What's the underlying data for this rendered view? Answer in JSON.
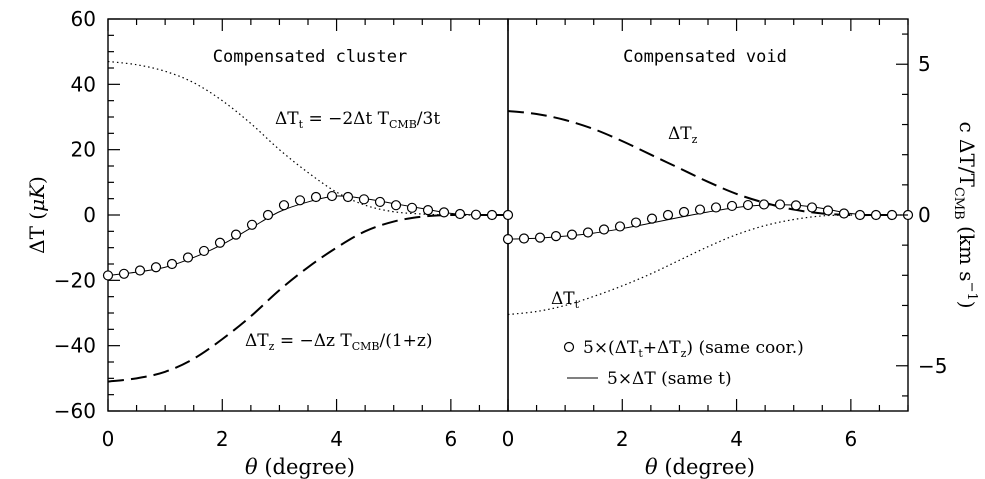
{
  "chart_data": [
    {
      "type": "line",
      "panel": "left",
      "title": "Compensated cluster",
      "xlabel": "θ (degree)",
      "ylabel": "ΔT (μK)",
      "xlim": [
        0,
        7
      ],
      "ylim": [
        -60,
        60
      ],
      "xticks": [
        "0",
        "2",
        "4",
        "6"
      ],
      "yticks": [
        "−60",
        "−40",
        "−20",
        "0",
        "20",
        "40",
        "60"
      ],
      "series": [
        {
          "name": "ΔTt = −2Δt TCMB/3t",
          "style": "dotted",
          "x": [
            0,
            0.5,
            1,
            1.5,
            2,
            2.5,
            3,
            3.5,
            4,
            4.5,
            5,
            5.5,
            6,
            6.5,
            7
          ],
          "y": [
            47,
            46,
            44,
            40.5,
            35,
            28,
            20,
            13,
            7,
            3,
            1,
            0.3,
            0,
            0,
            0
          ]
        },
        {
          "name": "ΔTz = −Δz TCMB/(1+z)",
          "style": "dashed",
          "x": [
            0,
            0.5,
            1,
            1.5,
            2,
            2.5,
            3,
            3.5,
            4,
            4.5,
            5,
            5.5,
            6,
            6.5,
            7
          ],
          "y": [
            -51,
            -50,
            -48,
            -44,
            -38,
            -31,
            -23,
            -16,
            -10,
            -5,
            -2,
            -0.5,
            0,
            0,
            0
          ]
        },
        {
          "name": "5×(ΔTt+ΔTz) (same coor.)",
          "style": "circles",
          "x": [
            0,
            0.28,
            0.56,
            0.84,
            1.12,
            1.4,
            1.68,
            1.96,
            2.24,
            2.52,
            2.8,
            3.08,
            3.36,
            3.64,
            3.92,
            4.2,
            4.48,
            4.76,
            5.04,
            5.32,
            5.6,
            5.88,
            6.16,
            6.44,
            6.72,
            7
          ],
          "y": [
            -18.5,
            -18,
            -17,
            -16,
            -15,
            -13,
            -11,
            -8.5,
            -6,
            -3,
            0,
            3,
            4.5,
            5.5,
            5.8,
            5.5,
            4.8,
            4,
            3,
            2.2,
            1.5,
            0.8,
            0.3,
            0.1,
            0,
            0
          ]
        },
        {
          "name": "5×ΔT (same t)",
          "style": "solid",
          "x": [
            0,
            0.5,
            1,
            1.5,
            2,
            2.5,
            3,
            3.5,
            4,
            4.5,
            5,
            5.5,
            6,
            6.5,
            7
          ],
          "y": [
            -18.5,
            -17.5,
            -16,
            -13,
            -9,
            -4,
            1,
            4,
            5.8,
            5,
            3.5,
            2,
            0.5,
            0,
            0
          ]
        }
      ]
    },
    {
      "type": "line",
      "panel": "right",
      "title": "Compensated void",
      "xlabel": "θ (degree)",
      "ylabel": "c ΔT/TCMB (km s−1)",
      "xlim": [
        0,
        7
      ],
      "ylim": [
        -6.5,
        6.5
      ],
      "xticks": [
        "0",
        "2",
        "4",
        "6"
      ],
      "yticks": [
        "−5",
        "0",
        "5"
      ],
      "series": [
        {
          "name": "ΔTz",
          "style": "dashed",
          "x": [
            0,
            0.5,
            1,
            1.5,
            2,
            2.5,
            3,
            3.5,
            4,
            4.5,
            5,
            5.5,
            6,
            6.5,
            7
          ],
          "y": [
            3.45,
            3.35,
            3.15,
            2.85,
            2.45,
            2.0,
            1.55,
            1.1,
            0.7,
            0.4,
            0.18,
            0.05,
            0,
            0,
            0
          ]
        },
        {
          "name": "ΔTt",
          "style": "dotted",
          "x": [
            0,
            0.5,
            1,
            1.5,
            2,
            2.5,
            3,
            3.5,
            4,
            4.5,
            5,
            5.5,
            6,
            6.5,
            7
          ],
          "y": [
            -3.3,
            -3.2,
            -3.0,
            -2.7,
            -2.35,
            -1.95,
            -1.5,
            -1.05,
            -0.65,
            -0.35,
            -0.15,
            -0.03,
            0,
            0,
            0
          ]
        },
        {
          "name": "5×(ΔTt+ΔTz) (same coor.)",
          "style": "circles",
          "x": [
            0,
            0.28,
            0.56,
            0.84,
            1.12,
            1.4,
            1.68,
            1.96,
            2.24,
            2.52,
            2.8,
            3.08,
            3.36,
            3.64,
            3.92,
            4.2,
            4.48,
            4.76,
            5.04,
            5.32,
            5.6,
            5.88,
            6.16,
            6.44,
            6.72,
            7
          ],
          "y": [
            -0.8,
            -0.78,
            -0.75,
            -0.7,
            -0.65,
            -0.58,
            -0.48,
            -0.38,
            -0.25,
            -0.12,
            0,
            0.1,
            0.18,
            0.25,
            0.3,
            0.33,
            0.35,
            0.35,
            0.32,
            0.25,
            0.15,
            0.05,
            0,
            0,
            0,
            0
          ]
        },
        {
          "name": "5×ΔT (same t)",
          "style": "solid",
          "x": [
            0,
            0.5,
            1,
            1.5,
            2,
            2.5,
            3,
            3.5,
            4,
            4.5,
            5,
            5.5,
            6,
            6.5,
            7
          ],
          "y": [
            -0.8,
            -0.77,
            -0.7,
            -0.6,
            -0.45,
            -0.27,
            -0.08,
            0.1,
            0.25,
            0.33,
            0.33,
            0.22,
            0.05,
            0,
            0
          ]
        }
      ]
    }
  ],
  "labels": {
    "left_title": "Compensated cluster",
    "right_title": "Compensated void",
    "left_ylabel_main": "ΔT (",
    "left_ylabel_mu": "μK",
    "left_ylabel_close": ")",
    "right_ylabel_main": "c ΔT/T",
    "right_ylabel_sub": "CMB",
    "right_ylabel_units": " (km s",
    "right_ylabel_sup": "−1",
    "right_ylabel_close": ")",
    "xlabel_theta": "θ",
    "xlabel_unit": " (degree)",
    "anno_dTt_left": {
      "a": "ΔT",
      "b": "t",
      "c": " = −2Δt T",
      "d": "CMB",
      "e": "/3t"
    },
    "anno_dTz_left": {
      "a": "ΔT",
      "b": "z",
      "c": " = −Δz T",
      "d": "CMB",
      "e": "/(1+z)"
    },
    "anno_dTz_right": {
      "a": "ΔT",
      "b": "z"
    },
    "anno_dTt_right": {
      "a": "ΔT",
      "b": "t"
    },
    "legend": {
      "circles": {
        "a": "5×(ΔT",
        "b": "t",
        "c": "+ΔT",
        "d": "z",
        "e": ") (same coor.)"
      },
      "solid": {
        "a": "5×ΔT (same t)"
      }
    }
  }
}
